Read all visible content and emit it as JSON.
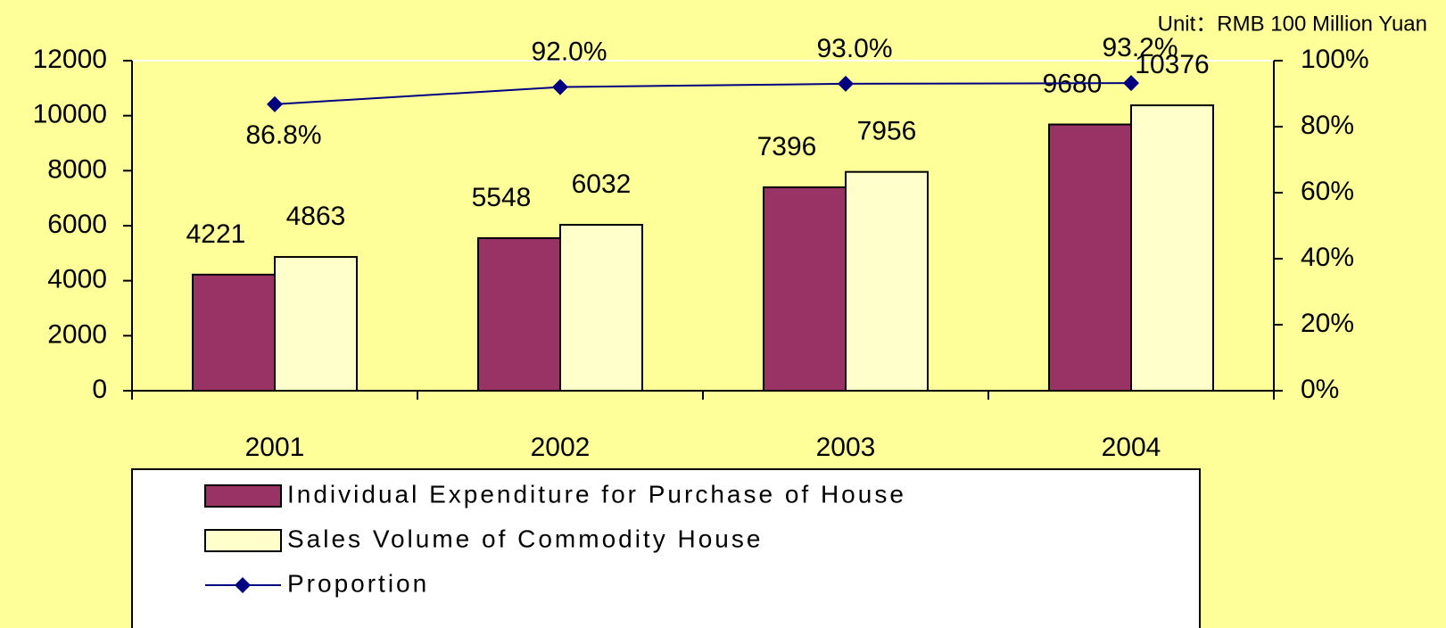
{
  "chart_data": {
    "type": "bar",
    "unit": "Unit：RMB 100 Million Yuan",
    "categories": [
      "2001",
      "2002",
      "2003",
      "2004"
    ],
    "series": [
      {
        "name": "Individual Expenditure for Purchase of House",
        "color": "#993366",
        "values": [
          4221,
          5548,
          7396,
          9680
        ]
      },
      {
        "name": "Sales Volume of Commodity House",
        "color": "#FFFFCC",
        "values": [
          4863,
          6032,
          7956,
          10376
        ]
      },
      {
        "name": "Proportion",
        "color": "#000080",
        "type": "line",
        "axis": "y2",
        "values": [
          86.8,
          92.0,
          93.0,
          93.2
        ],
        "value_labels": [
          "86.8%",
          "92.0%",
          "93.0%",
          "93.2%"
        ]
      }
    ],
    "ylim": [
      0,
      12000
    ],
    "yticks": [
      0,
      2000,
      4000,
      6000,
      8000,
      10000,
      12000
    ],
    "y2lim": [
      0,
      100
    ],
    "y2ticks": [
      {
        "value": 0,
        "label": "0%"
      },
      {
        "value": 20,
        "label": "20%"
      },
      {
        "value": 40,
        "label": "40%"
      },
      {
        "value": 60,
        "label": "60%"
      },
      {
        "value": 80,
        "label": "80%"
      },
      {
        "value": 100,
        "label": "100%"
      }
    ],
    "legend": "bottom"
  }
}
